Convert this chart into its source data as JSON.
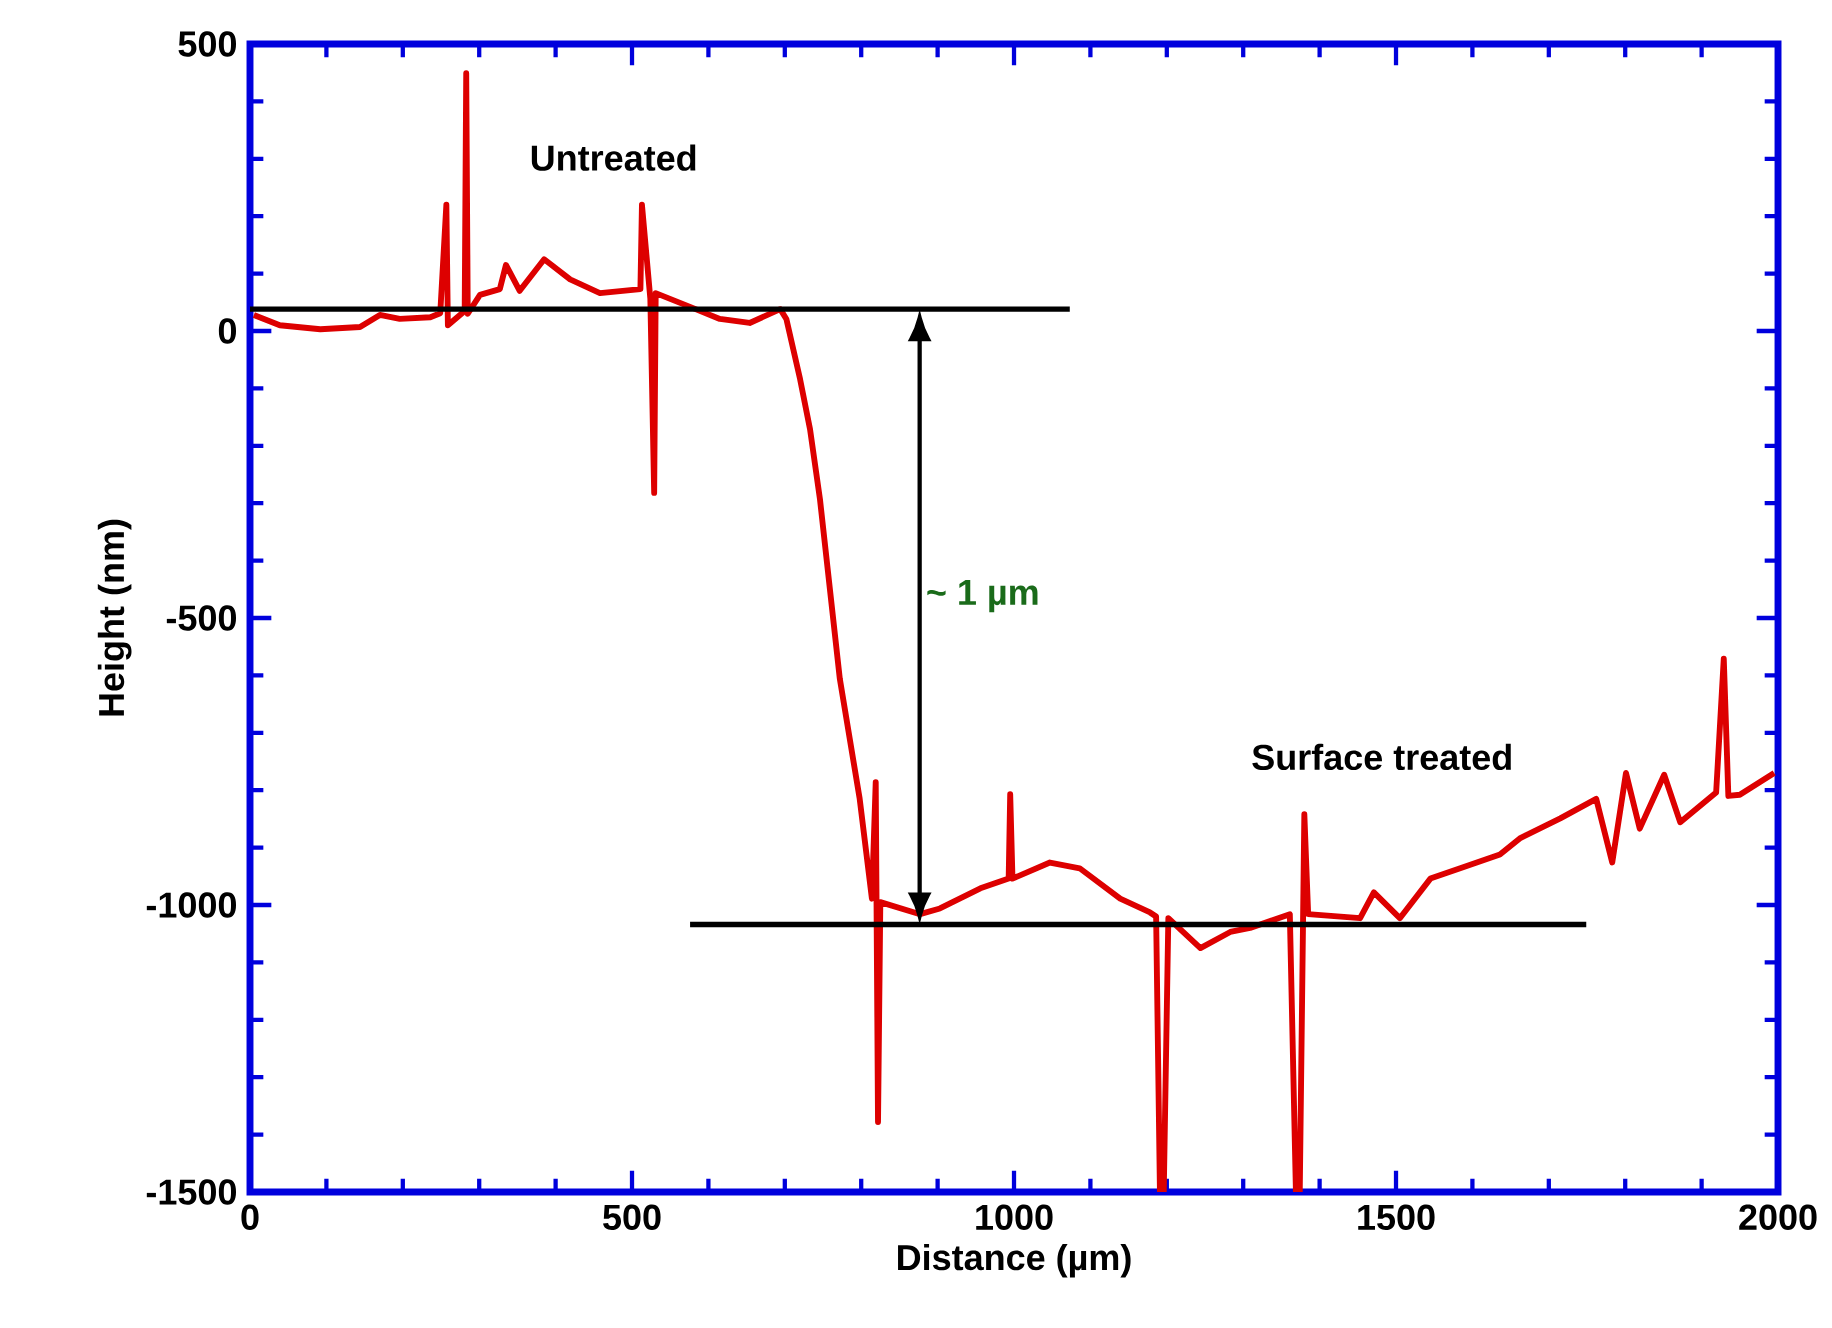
{
  "chart_data": {
    "type": "line",
    "xlabel": "Distance (µm)",
    "ylabel": "Height (nm)",
    "xlim": [
      0,
      2000
    ],
    "ylim": [
      -1500,
      500
    ],
    "xticks": [
      0,
      500,
      1000,
      1500,
      2000
    ],
    "yticks": [
      -1500,
      -1000,
      -500,
      0,
      500
    ],
    "marker": "none",
    "line_style": "solid",
    "series": [
      {
        "color": "#dd0000",
        "x": [
          5,
          39,
          92,
          144,
          170,
          196,
          236,
          249,
          257,
          259,
          281,
          283,
          285,
          301,
          327,
          335,
          353,
          385,
          419,
          458,
          511,
          513,
          524,
          529,
          531,
          576,
          615,
          654,
          694,
          702,
          720,
          733,
          746,
          772,
          798,
          814,
          819,
          822,
          825,
          877,
          903,
          956,
          993,
          995,
          998,
          1047,
          1086,
          1139,
          1178,
          1186,
          1191,
          1196,
          1202,
          1244,
          1283,
          1309,
          1361,
          1369,
          1374,
          1380,
          1385,
          1453,
          1471,
          1505,
          1545,
          1584,
          1636,
          1662,
          1715,
          1762,
          1783,
          1801,
          1819,
          1851,
          1872,
          1919,
          1929,
          1935,
          1950,
          1995
        ],
        "values": [
          28,
          10,
          3,
          7,
          28,
          21,
          24,
          31,
          220,
          10,
          35,
          449,
          30,
          63,
          73,
          115,
          70,
          125,
          90,
          66,
          73,
          220,
          56,
          -282,
          66,
          42,
          21,
          14,
          38,
          21,
          -84,
          -171,
          -293,
          -606,
          -815,
          -989,
          -786,
          -1378,
          -995,
          -1016,
          -1006,
          -971,
          -954,
          -807,
          -954,
          -926,
          -936,
          -989,
          -1013,
          -1020,
          -1500,
          -1500,
          -1023,
          -1075,
          -1047,
          -1040,
          -1016,
          -1500,
          -1500,
          -842,
          -1016,
          -1023,
          -978,
          -1023,
          -954,
          -936,
          -912,
          -884,
          -849,
          -815,
          -926,
          -770,
          -867,
          -773,
          -856,
          -804,
          -571,
          -810,
          -808,
          -770
        ]
      },
      {
        "type": "line",
        "color": "#000000",
        "x": [
          0,
          1073
        ],
        "values": [
          38,
          38
        ]
      },
      {
        "type": "line",
        "color": "#000000",
        "x": [
          576,
          1749
        ],
        "values": [
          -1034,
          -1034
        ]
      }
    ],
    "annotations": [
      "Untreated",
      "Surface treated",
      "~ 1 µm"
    ]
  }
}
